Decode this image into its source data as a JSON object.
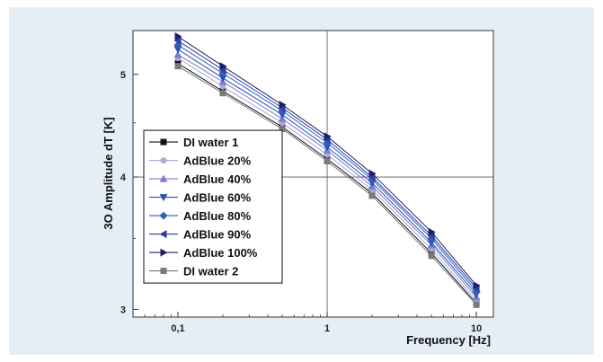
{
  "chart_data": {
    "type": "line",
    "xlabel": "Frequency [Hz]",
    "ylabel": "3O Amplitude dT [K]",
    "x_scale": "log",
    "y_scale": "log",
    "xlim": [
      0.05,
      13
    ],
    "ylim": [
      2.95,
      5.5
    ],
    "x_ticks": [
      0.1,
      1,
      10
    ],
    "x_tick_labels": [
      "0,1",
      "1",
      "10"
    ],
    "y_ticks": [
      3,
      4,
      5
    ],
    "y_tick_labels": [
      "3",
      "4",
      "5"
    ],
    "grid": "lines at x=1 and y=4",
    "legend_position": "lower-left",
    "x": [
      0.1,
      0.2,
      0.5,
      1,
      2,
      5,
      10
    ],
    "series": [
      {
        "name": "DI water 1",
        "marker": "square",
        "color": "#111111",
        "values": [
          5.12,
          4.82,
          4.46,
          4.16,
          3.86,
          3.39,
          3.04
        ]
      },
      {
        "name": "AdBlue 20%",
        "marker": "circle",
        "color": "#a9a9dc",
        "values": [
          5.18,
          4.87,
          4.5,
          4.2,
          3.89,
          3.42,
          3.06
        ]
      },
      {
        "name": "AdBlue 40%",
        "marker": "triangle-up",
        "color": "#7b7bd6",
        "values": [
          5.22,
          4.92,
          4.54,
          4.24,
          3.92,
          3.45,
          3.08
        ]
      },
      {
        "name": "AdBlue 60%",
        "marker": "triangle-down",
        "color": "#2a4fb5",
        "values": [
          5.28,
          4.96,
          4.58,
          4.27,
          3.95,
          3.47,
          3.1
        ]
      },
      {
        "name": "AdBlue 80%",
        "marker": "diamond",
        "color": "#2a63b8",
        "values": [
          5.33,
          5.01,
          4.62,
          4.31,
          3.98,
          3.5,
          3.12
        ]
      },
      {
        "name": "AdBlue 90%",
        "marker": "triangle-left",
        "color": "#2f3f9e",
        "values": [
          5.38,
          5.05,
          4.65,
          4.34,
          4.0,
          3.52,
          3.14
        ]
      },
      {
        "name": "AdBlue 100%",
        "marker": "triangle-right",
        "color": "#1d1f6e",
        "values": [
          5.43,
          5.09,
          4.68,
          4.37,
          4.03,
          3.55,
          3.16
        ]
      },
      {
        "name": "DI water 2",
        "marker": "square",
        "color": "#7a7a7a",
        "values": [
          5.09,
          4.8,
          4.44,
          4.14,
          3.84,
          3.37,
          3.03
        ]
      }
    ]
  }
}
